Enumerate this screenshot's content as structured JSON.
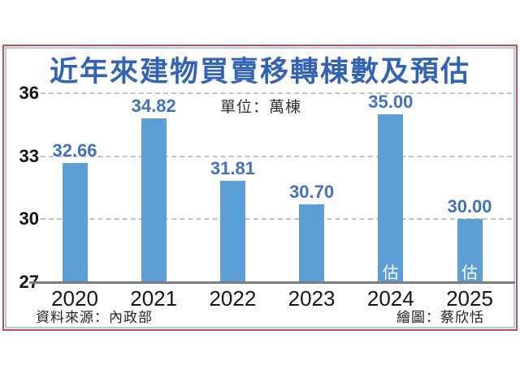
{
  "title": "近年來建物買賣移轉棟數及預估",
  "unit_label": "單位：萬棟",
  "source_label": "資料來源：內政部",
  "credit_label": "繪圖：蔡欣恬",
  "colors": {
    "title_blue": "#3363b4",
    "bar_blue": "#5b9fd6",
    "value_label_blue": "#4272be",
    "frame_red": "#c0504d",
    "frame_inner_blue": "#aecbe8",
    "gridline_gray": "#c2c2c2",
    "axis_gray": "#7d7d7d"
  },
  "chart_data": {
    "type": "bar",
    "title": "近年來建物買賣移轉棟數及預估",
    "unit": "萬棟",
    "categories": [
      "2020",
      "2021",
      "2022",
      "2023",
      "2024",
      "2025"
    ],
    "values": [
      32.66,
      34.82,
      31.81,
      30.7,
      35.0,
      30.0
    ],
    "value_labels": [
      "32.66",
      "34.82",
      "31.81",
      "30.70",
      "35.00",
      "30.00"
    ],
    "estimate_flags": [
      false,
      false,
      false,
      false,
      true,
      true
    ],
    "estimate_marker": "估",
    "ylim": [
      27,
      36
    ],
    "yticks": [
      36,
      33,
      30,
      27
    ],
    "grid": "horizontal-dashed",
    "legend": "none",
    "source": "內政部"
  }
}
